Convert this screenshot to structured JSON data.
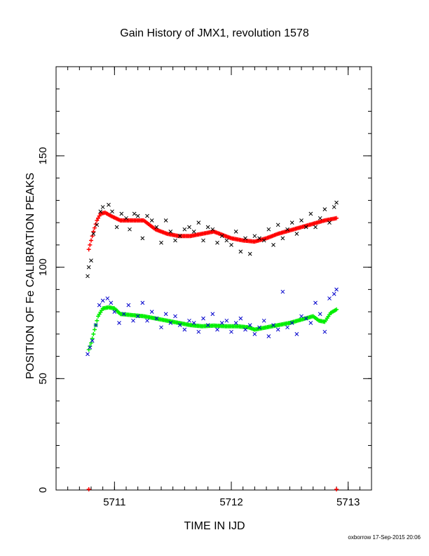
{
  "chart_data": {
    "type": "scatter",
    "title": "Gain History of JMX1, revolution 1578",
    "xlabel": "TIME IN IJD",
    "ylabel": "POSITION OF Fe CALIBRATION PEAKS",
    "footer": "oxborrow 17-Sep-2015 20:06",
    "xlim": [
      5710.5,
      5713.2
    ],
    "ylim": [
      0,
      190
    ],
    "x_ticks": [
      5711,
      5712,
      5713
    ],
    "x_tick_labels": [
      "5711",
      "5712",
      "5713"
    ],
    "y_ticks": [
      0,
      50,
      100,
      150
    ],
    "y_tick_labels": [
      "0",
      "50",
      "100",
      "150"
    ],
    "x_minor_step": 0.1,
    "y_minor_step": 10,
    "grid": false,
    "colors": {
      "upper_points": "#000000",
      "upper_fit": "#ff0000",
      "lower_points": "#0000cc",
      "lower_fit": "#00ee00"
    },
    "series": [
      {
        "role": "upper-fit",
        "marker": "plus",
        "x": [
          5710.78,
          5710.8,
          5710.82,
          5710.85,
          5710.88,
          5710.92,
          5710.97,
          5711.05,
          5711.15,
          5711.25,
          5711.35,
          5711.45,
          5711.55,
          5711.65,
          5711.75,
          5711.85,
          5711.9,
          5712.0,
          5712.1,
          5712.2,
          5712.3,
          5712.4,
          5712.5,
          5712.6,
          5712.7,
          5712.8,
          5712.9
        ],
        "y": [
          108,
          112,
          116,
          121,
          124,
          124.5,
          123,
          121,
          121,
          121,
          117,
          115,
          114,
          114,
          115,
          116,
          115,
          113,
          112,
          111.5,
          113,
          115,
          116.5,
          118,
          119.5,
          121,
          122
        ]
      },
      {
        "role": "lower-fit",
        "marker": "plus",
        "x": [
          5710.78,
          5710.8,
          5710.83,
          5710.86,
          5710.9,
          5710.95,
          5711.0,
          5711.05,
          5711.15,
          5711.25,
          5711.35,
          5711.45,
          5711.55,
          5711.65,
          5711.75,
          5711.85,
          5711.95,
          5712.05,
          5712.15,
          5712.2,
          5712.3,
          5712.4,
          5712.5,
          5712.6,
          5712.7,
          5712.75,
          5712.8,
          5712.85,
          5712.9
        ],
        "y": [
          63,
          66,
          72,
          78,
          81.5,
          82,
          81.5,
          79,
          78.5,
          78,
          77,
          76,
          75,
          74,
          73.5,
          73.8,
          73.5,
          73.5,
          73,
          72,
          73,
          74,
          75,
          76.5,
          78,
          76,
          75.5,
          79.5,
          81
        ]
      },
      {
        "role": "upper-points",
        "marker": "x",
        "x": [
          5710.77,
          5710.78,
          5710.8,
          5710.82,
          5710.85,
          5710.88,
          5710.9,
          5710.95,
          5710.98,
          5711.02,
          5711.06,
          5711.1,
          5711.13,
          5711.17,
          5711.2,
          5711.24,
          5711.28,
          5711.32,
          5711.36,
          5711.4,
          5711.44,
          5711.48,
          5711.52,
          5711.56,
          5711.6,
          5711.64,
          5711.68,
          5711.72,
          5711.76,
          5711.8,
          5711.84,
          5711.88,
          5711.92,
          5711.96,
          5712.0,
          5712.04,
          5712.08,
          5712.12,
          5712.16,
          5712.2,
          5712.24,
          5712.28,
          5712.32,
          5712.36,
          5712.4,
          5712.44,
          5712.48,
          5712.52,
          5712.56,
          5712.6,
          5712.64,
          5712.68,
          5712.72,
          5712.76,
          5712.8,
          5712.84,
          5712.88,
          5712.9
        ],
        "y": [
          96,
          100,
          103,
          115,
          119,
          125,
          127,
          128,
          125,
          118,
          124,
          122,
          117,
          124,
          123,
          113,
          123,
          121,
          118,
          111,
          121,
          116,
          112,
          114,
          117,
          118,
          116,
          120,
          112,
          118,
          117,
          111,
          114,
          112,
          110,
          116,
          107,
          113,
          106,
          114,
          113,
          112,
          117,
          110,
          119,
          113,
          117,
          120,
          115,
          121,
          118,
          124,
          118,
          122,
          126,
          120,
          127,
          129
        ]
      },
      {
        "role": "lower-points",
        "marker": "x",
        "x": [
          5710.77,
          5710.79,
          5710.81,
          5710.84,
          5710.87,
          5710.9,
          5710.94,
          5710.97,
          5711.0,
          5711.04,
          5711.08,
          5711.12,
          5711.16,
          5711.2,
          5711.24,
          5711.28,
          5711.32,
          5711.36,
          5711.4,
          5711.44,
          5711.48,
          5711.52,
          5711.56,
          5711.6,
          5711.64,
          5711.68,
          5711.72,
          5711.76,
          5711.8,
          5711.84,
          5711.88,
          5711.92,
          5711.96,
          5712.0,
          5712.04,
          5712.08,
          5712.12,
          5712.16,
          5712.2,
          5712.24,
          5712.28,
          5712.32,
          5712.36,
          5712.4,
          5712.44,
          5712.48,
          5712.52,
          5712.56,
          5712.6,
          5712.64,
          5712.68,
          5712.72,
          5712.76,
          5712.8,
          5712.84,
          5712.88,
          5712.9
        ],
        "y": [
          61,
          64,
          67,
          74,
          83,
          85,
          86,
          84,
          80,
          75,
          79,
          83,
          76,
          78,
          84,
          76,
          80,
          77,
          73,
          79,
          75,
          78,
          74,
          72,
          76,
          75,
          71,
          77,
          74,
          79,
          72,
          75,
          76,
          71,
          75,
          77,
          72,
          74,
          70,
          73,
          76,
          69,
          74,
          72,
          89,
          73,
          75,
          70,
          78,
          77,
          75,
          84,
          79,
          71,
          86,
          88,
          90
        ]
      }
    ]
  }
}
